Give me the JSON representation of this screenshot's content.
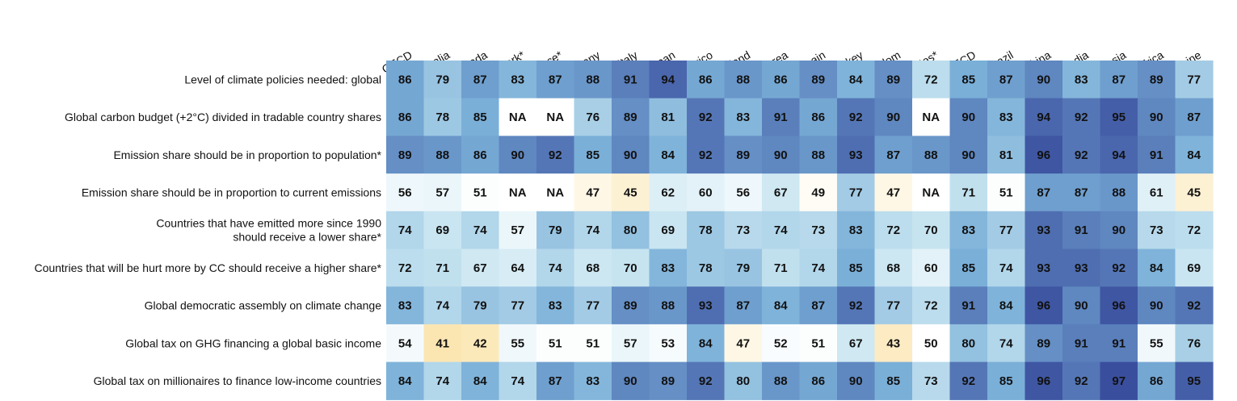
{
  "chart_data": {
    "type": "heatmap",
    "columns": [
      "OECD",
      "Australia",
      "Canada",
      "Denmark*",
      "France*",
      "Germany",
      "Italy",
      "Japan",
      "Mexico",
      "Poland",
      "South Korea",
      "Spain",
      "Turkey",
      "United Kingdom",
      "United States*",
      "Non-OECD",
      "Brazil",
      "China",
      "India",
      "Indonesia",
      "South Africa",
      "Ukraine"
    ],
    "rows": [
      {
        "label": [
          "Level of climate policies needed: global"
        ],
        "values": [
          86,
          79,
          87,
          83,
          87,
          88,
          91,
          94,
          86,
          88,
          86,
          89,
          84,
          89,
          72,
          85,
          87,
          90,
          83,
          87,
          89,
          77
        ]
      },
      {
        "label": [
          "Global carbon budget (+2°C) divided in tradable country shares"
        ],
        "values": [
          86,
          78,
          85,
          "NA",
          "NA",
          76,
          89,
          81,
          92,
          83,
          91,
          86,
          92,
          90,
          "NA",
          90,
          83,
          94,
          92,
          95,
          90,
          87
        ]
      },
      {
        "label": [
          "Emission share should be in proportion to population*"
        ],
        "values": [
          89,
          88,
          86,
          90,
          92,
          85,
          90,
          84,
          92,
          89,
          90,
          88,
          93,
          87,
          88,
          90,
          81,
          96,
          92,
          94,
          91,
          84
        ]
      },
      {
        "label": [
          "Emission share should be in proportion to current emissions"
        ],
        "values": [
          56,
          57,
          51,
          "NA",
          "NA",
          47,
          45,
          62,
          60,
          56,
          67,
          49,
          77,
          47,
          "NA",
          71,
          51,
          87,
          87,
          88,
          61,
          45
        ]
      },
      {
        "label": [
          "Countries that have emitted more since 1990",
          "should receive a lower share*"
        ],
        "values": [
          74,
          69,
          74,
          57,
          79,
          74,
          80,
          69,
          78,
          73,
          74,
          73,
          83,
          72,
          70,
          83,
          77,
          93,
          91,
          90,
          73,
          72
        ]
      },
      {
        "label": [
          "Countries that will be hurt more by CC should receive a higher share*"
        ],
        "values": [
          72,
          71,
          67,
          64,
          74,
          68,
          70,
          83,
          78,
          79,
          71,
          74,
          85,
          68,
          60,
          85,
          74,
          93,
          93,
          92,
          84,
          69
        ]
      },
      {
        "label": [
          "Global democratic assembly on climate change"
        ],
        "values": [
          83,
          74,
          79,
          77,
          83,
          77,
          89,
          88,
          93,
          87,
          84,
          87,
          92,
          77,
          72,
          91,
          84,
          96,
          90,
          96,
          90,
          92
        ]
      },
      {
        "label": [
          "Global tax on GHG financing a global basic income"
        ],
        "values": [
          54,
          41,
          42,
          55,
          51,
          51,
          57,
          53,
          84,
          47,
          52,
          51,
          67,
          43,
          50,
          80,
          74,
          89,
          91,
          91,
          55,
          76
        ]
      },
      {
        "label": [
          "Global tax on millionaires to finance low-income countries"
        ],
        "values": [
          84,
          74,
          84,
          74,
          87,
          83,
          90,
          89,
          92,
          80,
          88,
          86,
          90,
          85,
          73,
          92,
          85,
          96,
          92,
          97,
          86,
          95
        ]
      }
    ],
    "colors": {
      "low": "#fbe3a9",
      "mid": "#ffffff",
      "high": "#3a4e9e",
      "na": "#ffffff"
    }
  }
}
